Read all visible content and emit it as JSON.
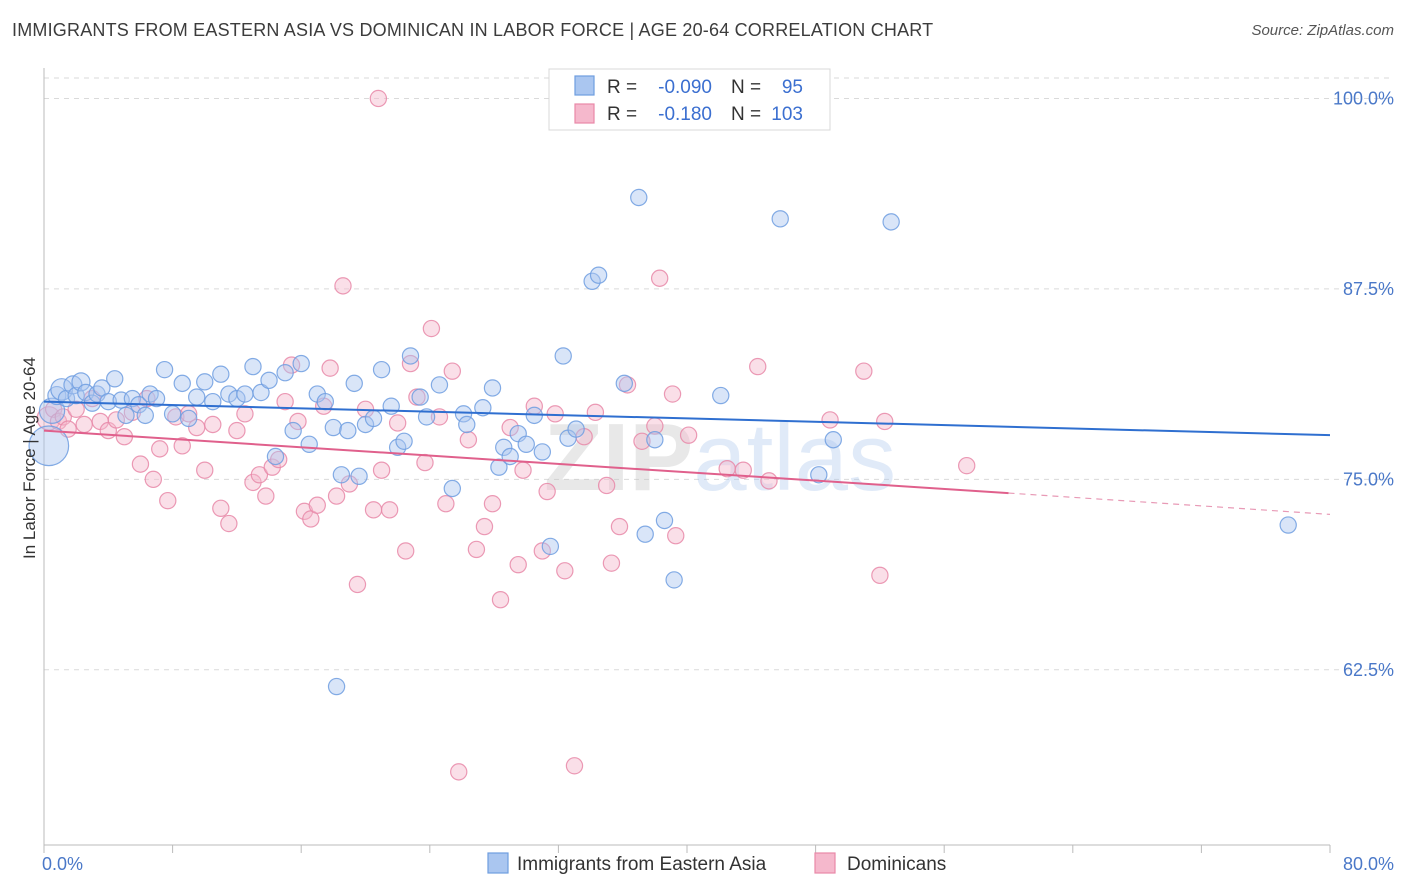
{
  "title": "IMMIGRANTS FROM EASTERN ASIA VS DOMINICAN IN LABOR FORCE | AGE 20-64 CORRELATION CHART",
  "source": "Source: ZipAtlas.com",
  "watermark": "ZIPatlas",
  "chart_data": {
    "type": "scatter",
    "ylabel": "In Labor Force | Age 20-64",
    "xlim": [
      0,
      80
    ],
    "ylim": [
      51,
      102
    ],
    "x_tick_labels": {
      "left": "0.0%",
      "right": "80.0%"
    },
    "y_ticks": [
      {
        "value": 100,
        "label": "100.0%"
      },
      {
        "value": 87.5,
        "label": "87.5%"
      },
      {
        "value": 75,
        "label": "75.0%"
      },
      {
        "value": 62.5,
        "label": "62.5%"
      }
    ],
    "grid": "horizontal dashed",
    "legend_position": "top-center",
    "legend": [
      {
        "R_label": "R =",
        "R": "-0.090",
        "N_label": "N =",
        "N": "95"
      },
      {
        "R_label": "R =",
        "R": "-0.180",
        "N_label": "N = ",
        "N": "103"
      }
    ],
    "series": [
      {
        "name": "Immigrants from Eastern Asia",
        "color": "#6f9ee0",
        "fill": "#aac6f0",
        "trend": {
          "x": [
            0,
            80
          ],
          "y": [
            80.1,
            77.9
          ]
        },
        "points": [
          [
            0.3,
            77.2,
            2.2
          ],
          [
            0.5,
            79.5,
            1.4
          ],
          [
            0.8,
            80.5,
            1.0
          ],
          [
            1.1,
            80.9,
            1.2
          ],
          [
            1.4,
            80.3,
            0.9
          ],
          [
            1.8,
            81.2,
            1.0
          ],
          [
            2.0,
            80.5,
            0.9
          ],
          [
            2.3,
            81.4,
            1.0
          ],
          [
            2.6,
            80.7,
            0.9
          ],
          [
            3.0,
            80.0,
            0.9
          ],
          [
            3.3,
            80.6,
            0.9
          ],
          [
            3.6,
            81.0,
            0.9
          ],
          [
            4.0,
            80.1,
            0.9
          ],
          [
            4.4,
            81.6,
            0.9
          ],
          [
            4.8,
            80.2,
            0.9
          ],
          [
            5.1,
            79.2,
            0.9
          ],
          [
            5.5,
            80.3,
            0.9
          ],
          [
            5.9,
            79.9,
            0.9
          ],
          [
            6.3,
            79.2,
            0.9
          ],
          [
            6.6,
            80.6,
            0.9
          ],
          [
            7.0,
            80.3,
            0.9
          ],
          [
            7.5,
            82.2,
            0.9
          ],
          [
            8.0,
            79.3,
            0.9
          ],
          [
            8.6,
            81.3,
            0.9
          ],
          [
            9.0,
            79.0,
            0.9
          ],
          [
            9.5,
            80.4,
            0.9
          ],
          [
            10.0,
            81.4,
            0.9
          ],
          [
            10.5,
            80.1,
            0.9
          ],
          [
            11.0,
            81.9,
            0.9
          ],
          [
            11.5,
            80.6,
            0.9
          ],
          [
            12.0,
            80.3,
            0.9
          ],
          [
            12.5,
            80.6,
            0.9
          ],
          [
            13.0,
            82.4,
            0.9
          ],
          [
            13.5,
            80.7,
            0.9
          ],
          [
            14.0,
            81.5,
            0.9
          ],
          [
            14.4,
            76.5,
            0.9
          ],
          [
            15.0,
            82.0,
            0.9
          ],
          [
            15.5,
            78.2,
            0.9
          ],
          [
            16.0,
            82.6,
            0.9
          ],
          [
            16.5,
            77.3,
            0.9
          ],
          [
            17.0,
            80.6,
            0.9
          ],
          [
            17.5,
            80.1,
            0.9
          ],
          [
            18.0,
            78.4,
            0.9
          ],
          [
            18.5,
            75.3,
            0.9
          ],
          [
            18.9,
            78.2,
            0.9
          ],
          [
            18.2,
            61.4,
            0.9
          ],
          [
            19.3,
            81.3,
            0.9
          ],
          [
            19.6,
            75.2,
            0.9
          ],
          [
            20.0,
            78.6,
            0.9
          ],
          [
            20.5,
            79.0,
            0.9
          ],
          [
            21.0,
            82.2,
            0.9
          ],
          [
            21.6,
            79.8,
            0.9
          ],
          [
            22.0,
            77.1,
            0.9
          ],
          [
            22.4,
            77.5,
            0.9
          ],
          [
            22.8,
            83.1,
            0.9
          ],
          [
            23.4,
            80.4,
            0.9
          ],
          [
            23.8,
            79.1,
            0.9
          ],
          [
            24.6,
            81.2,
            0.9
          ],
          [
            25.4,
            74.4,
            0.9
          ],
          [
            26.1,
            79.3,
            0.9
          ],
          [
            26.3,
            78.6,
            0.9
          ],
          [
            27.3,
            79.7,
            0.9
          ],
          [
            27.9,
            81.0,
            0.9
          ],
          [
            28.3,
            75.8,
            0.9
          ],
          [
            28.6,
            77.1,
            0.9
          ],
          [
            29.0,
            76.5,
            0.9
          ],
          [
            29.5,
            78.0,
            0.9
          ],
          [
            30.0,
            77.3,
            0.9
          ],
          [
            30.5,
            79.2,
            0.9
          ],
          [
            31.0,
            76.8,
            0.9
          ],
          [
            31.5,
            70.6,
            0.9
          ],
          [
            32.3,
            83.1,
            0.9
          ],
          [
            32.6,
            77.7,
            0.9
          ],
          [
            33.1,
            78.3,
            0.9
          ],
          [
            34.1,
            88.0,
            0.9
          ],
          [
            34.5,
            88.4,
            0.9
          ],
          [
            36.1,
            81.3,
            0.9
          ],
          [
            37.0,
            93.5,
            0.9
          ],
          [
            37.4,
            71.4,
            0.9
          ],
          [
            38.0,
            77.6,
            0.9
          ],
          [
            38.6,
            72.3,
            0.9
          ],
          [
            39.2,
            68.4,
            0.9
          ],
          [
            42.1,
            80.5,
            0.9
          ],
          [
            45.8,
            92.1,
            0.9
          ],
          [
            48.2,
            75.3,
            0.9
          ],
          [
            49.1,
            77.6,
            0.9
          ],
          [
            52.7,
            91.9,
            0.9
          ],
          [
            77.4,
            72.0,
            0.9
          ]
        ]
      },
      {
        "name": "Dominicans",
        "color": "#e888a8",
        "fill": "#f5b8cc",
        "trend": {
          "x": [
            0,
            60
          ],
          "y": [
            78.2,
            74.1
          ]
        },
        "trend_dashed": {
          "x": [
            60,
            80
          ],
          "y": [
            74.1,
            72.7
          ]
        },
        "points": [
          [
            0.3,
            79.0,
            1.3
          ],
          [
            0.6,
            79.6,
            0.9
          ],
          [
            0.9,
            78.8,
            0.9
          ],
          [
            1.2,
            79.1,
            0.9
          ],
          [
            1.5,
            78.3,
            0.9
          ],
          [
            2.0,
            79.6,
            0.9
          ],
          [
            2.5,
            78.6,
            0.9
          ],
          [
            3.0,
            80.3,
            0.9
          ],
          [
            3.5,
            78.8,
            0.9
          ],
          [
            4.0,
            78.2,
            0.9
          ],
          [
            4.5,
            78.9,
            0.9
          ],
          [
            5.0,
            77.8,
            0.9
          ],
          [
            5.5,
            79.4,
            0.9
          ],
          [
            6.0,
            76.0,
            0.9
          ],
          [
            6.4,
            80.3,
            0.9
          ],
          [
            6.8,
            75.0,
            0.9
          ],
          [
            7.2,
            77.0,
            0.9
          ],
          [
            7.7,
            73.6,
            0.9
          ],
          [
            8.2,
            79.1,
            0.9
          ],
          [
            8.6,
            77.2,
            0.9
          ],
          [
            9.0,
            79.3,
            0.9
          ],
          [
            9.5,
            78.4,
            0.9
          ],
          [
            10.0,
            75.6,
            0.9
          ],
          [
            10.5,
            78.6,
            0.9
          ],
          [
            11.0,
            73.1,
            0.9
          ],
          [
            11.5,
            72.1,
            0.9
          ],
          [
            12.0,
            78.2,
            0.9
          ],
          [
            12.5,
            79.3,
            0.9
          ],
          [
            13.0,
            74.8,
            0.9
          ],
          [
            13.4,
            75.3,
            0.9
          ],
          [
            13.8,
            73.9,
            0.9
          ],
          [
            14.2,
            75.8,
            0.9
          ],
          [
            14.6,
            76.3,
            0.9
          ],
          [
            15.0,
            80.1,
            0.9
          ],
          [
            15.4,
            82.5,
            0.9
          ],
          [
            15.8,
            78.8,
            0.9
          ],
          [
            16.2,
            72.9,
            0.9
          ],
          [
            16.6,
            72.4,
            0.9
          ],
          [
            17.0,
            73.3,
            0.9
          ],
          [
            17.4,
            79.8,
            0.9
          ],
          [
            17.8,
            82.3,
            0.9
          ],
          [
            18.2,
            73.9,
            0.9
          ],
          [
            18.6,
            87.7,
            0.9
          ],
          [
            19.0,
            74.7,
            0.9
          ],
          [
            19.5,
            68.1,
            0.9
          ],
          [
            20.0,
            79.6,
            0.9
          ],
          [
            20.5,
            73.0,
            0.9
          ],
          [
            21.0,
            75.6,
            0.9
          ],
          [
            21.5,
            73.0,
            0.9
          ],
          [
            22.0,
            78.7,
            0.9
          ],
          [
            22.5,
            70.3,
            0.9
          ],
          [
            22.8,
            82.6,
            0.9
          ],
          [
            23.2,
            80.4,
            0.9
          ],
          [
            23.7,
            76.1,
            0.9
          ],
          [
            24.1,
            84.9,
            0.9
          ],
          [
            24.6,
            79.1,
            0.9
          ],
          [
            25.0,
            73.4,
            0.9
          ],
          [
            25.4,
            82.1,
            0.9
          ],
          [
            25.8,
            55.8,
            0.9
          ],
          [
            26.4,
            77.6,
            0.9
          ],
          [
            26.9,
            70.4,
            0.9
          ],
          [
            27.4,
            71.9,
            0.9
          ],
          [
            27.9,
            73.4,
            0.9
          ],
          [
            28.4,
            67.1,
            0.9
          ],
          [
            29.0,
            78.4,
            0.9
          ],
          [
            29.5,
            69.4,
            0.9
          ],
          [
            29.8,
            75.6,
            0.9
          ],
          [
            30.5,
            79.8,
            0.9
          ],
          [
            31.0,
            70.3,
            0.9
          ],
          [
            31.3,
            74.2,
            0.9
          ],
          [
            31.8,
            79.3,
            0.9
          ],
          [
            32.4,
            69.0,
            0.9
          ],
          [
            33.0,
            56.2,
            0.9
          ],
          [
            33.6,
            77.8,
            0.9
          ],
          [
            34.3,
            79.4,
            0.9
          ],
          [
            35.0,
            74.6,
            0.9
          ],
          [
            35.3,
            69.5,
            0.9
          ],
          [
            35.8,
            71.9,
            0.9
          ],
          [
            36.3,
            81.2,
            0.9
          ],
          [
            37.2,
            77.5,
            0.9
          ],
          [
            38.0,
            78.5,
            0.9
          ],
          [
            38.3,
            88.2,
            0.9
          ],
          [
            39.1,
            80.6,
            0.9
          ],
          [
            39.3,
            71.3,
            0.9
          ],
          [
            40.1,
            77.9,
            0.9
          ],
          [
            42.5,
            75.7,
            0.9
          ],
          [
            43.5,
            75.6,
            0.9
          ],
          [
            44.4,
            82.4,
            0.9
          ],
          [
            45.1,
            74.9,
            0.9
          ],
          [
            48.9,
            78.9,
            0.9
          ],
          [
            51.0,
            82.1,
            0.9
          ],
          [
            52.0,
            68.7,
            0.9
          ],
          [
            52.3,
            78.8,
            0.9
          ],
          [
            57.4,
            75.9,
            0.9
          ],
          [
            20.8,
            100.0,
            0.9
          ]
        ]
      }
    ]
  }
}
